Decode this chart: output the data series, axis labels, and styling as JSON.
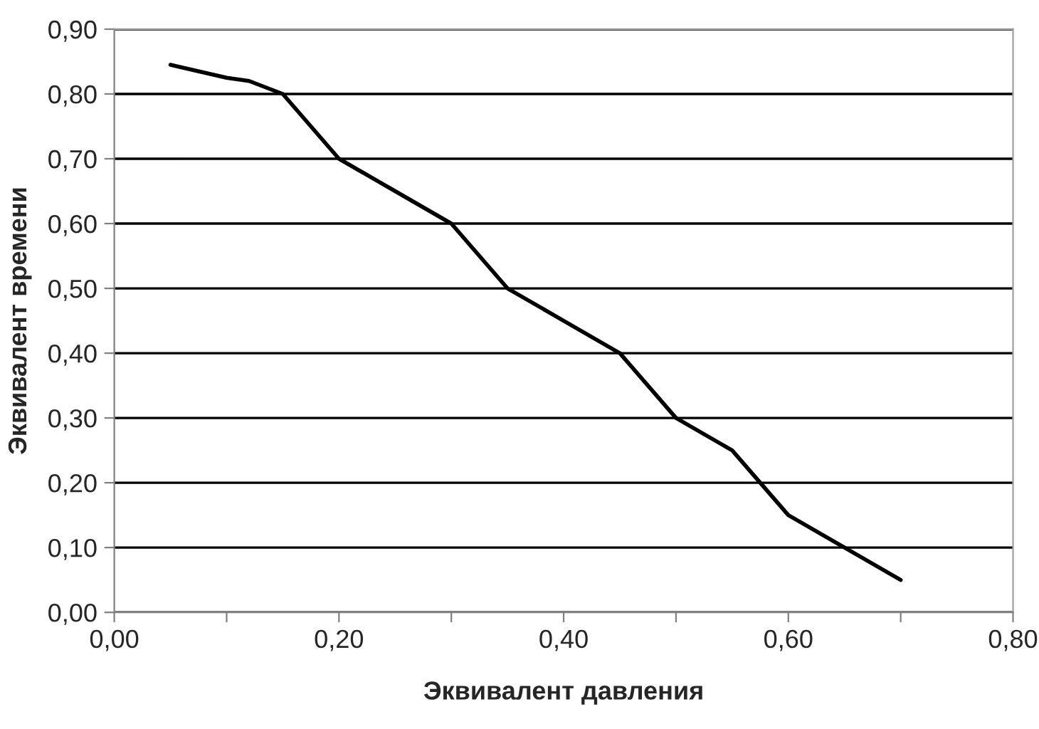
{
  "chart_data": {
    "type": "line",
    "xlabel": "Эквивалент давления",
    "ylabel": "Эквивалент времени",
    "x": [
      0.05,
      0.1,
      0.12,
      0.15,
      0.2,
      0.25,
      0.3,
      0.35,
      0.4,
      0.45,
      0.5,
      0.55,
      0.6,
      0.65,
      0.7
    ],
    "series": [
      {
        "color": "#000000",
        "values": [
          0.845,
          0.825,
          0.82,
          0.8,
          0.7,
          0.65,
          0.6,
          0.5,
          0.45,
          0.4,
          0.3,
          0.25,
          0.15,
          0.1,
          0.05
        ]
      }
    ],
    "xlim": [
      0,
      0.8
    ],
    "ylim": [
      0,
      0.9
    ],
    "xticks": [
      "0,00",
      {
        "value": 0.1,
        "label": null
      },
      {
        "value": 0.2,
        "label": "0,20"
      },
      {
        "value": 0.3,
        "label": null
      },
      {
        "value": 0.4,
        "label": "0,40"
      },
      {
        "value": 0.5,
        "label": null
      },
      {
        "value": 0.6,
        "label": "0,60"
      },
      {
        "value": 0.7,
        "label": null
      },
      {
        "value": 0.8,
        "label": "0,80"
      }
    ],
    "yticks": [
      {
        "value": 0,
        "label": "0,00"
      },
      {
        "value": 0.1,
        "label": "0,10"
      },
      {
        "value": 0.2,
        "label": "0,20"
      },
      {
        "value": 0.3,
        "label": "0,30"
      },
      {
        "value": 0.4,
        "label": "0,40"
      },
      {
        "value": 0.5,
        "label": "0,50"
      },
      {
        "value": 0.6,
        "label": "0,60"
      },
      {
        "value": 0.7,
        "label": "0,70"
      },
      {
        "value": 0.8,
        "label": "0,80"
      },
      {
        "value": 0.9,
        "label": "0,90"
      }
    ],
    "grid": "y",
    "marker": "none",
    "line_style": "solid",
    "legend": false
  }
}
